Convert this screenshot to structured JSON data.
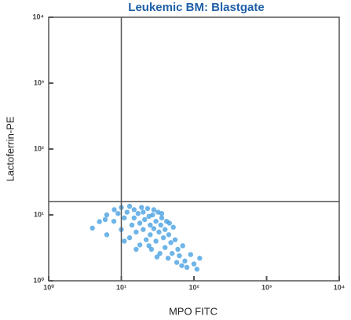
{
  "chart_data": {
    "type": "scatter",
    "title": "Leukemic BM: Blastgate",
    "x_label": "MPO FITC",
    "y_label": "Lactoferrin-PE",
    "log_x": true,
    "log_y": true,
    "xlim": [
      1,
      10000
    ],
    "ylim": [
      1,
      10000
    ],
    "xticks": [
      {
        "value": 1,
        "label": "10⁰"
      },
      {
        "value": 10,
        "label": "10¹"
      },
      {
        "value": 100,
        "label": "10²"
      },
      {
        "value": 1000,
        "label": "10³"
      },
      {
        "value": 10000,
        "label": "10⁴"
      }
    ],
    "yticks": [
      {
        "value": 1,
        "label": "10⁰"
      },
      {
        "value": 10,
        "label": "10¹"
      },
      {
        "value": 100,
        "label": "10²"
      },
      {
        "value": 1000,
        "label": "10³"
      },
      {
        "value": 10000,
        "label": "10⁴"
      }
    ],
    "gate_x": 10,
    "gate_y": 16,
    "color": "#3d9be0",
    "x": [
      4,
      5,
      6.3,
      6.3,
      7.9,
      8,
      10,
      10,
      11,
      12,
      13,
      14,
      15,
      15,
      16,
      17,
      18,
      18,
      20,
      20,
      21,
      22,
      23,
      24,
      25,
      25,
      26,
      27,
      28,
      30,
      30,
      32,
      33,
      34,
      35,
      36,
      38,
      40,
      40,
      42,
      44,
      45,
      48,
      50,
      52,
      55,
      58,
      60,
      63,
      68,
      70,
      75,
      80,
      90,
      100,
      110,
      120,
      13,
      9,
      19,
      28,
      36,
      6,
      11,
      24,
      31,
      16,
      46
    ],
    "y": [
      6.3,
      7.9,
      10,
      5,
      8,
      12,
      13,
      6,
      9,
      11,
      4.5,
      7,
      12,
      9,
      5.5,
      10.5,
      3.5,
      7.5,
      11,
      6,
      8.5,
      4.2,
      12.5,
      9.5,
      5,
      7,
      3,
      10,
      6.2,
      8,
      4,
      11,
      5.5,
      2.6,
      7,
      9,
      4.5,
      3.2,
      6,
      8,
      2.2,
      5,
      3.8,
      2.6,
      6.5,
      4.2,
      1.9,
      3,
      2.4,
      1.7,
      3.4,
      2,
      1.6,
      2.5,
      1.8,
      1.5,
      2.2,
      13.5,
      10.5,
      13,
      12,
      10.5,
      8.5,
      4,
      3.4,
      2.3,
      3,
      7.5
    ]
  }
}
